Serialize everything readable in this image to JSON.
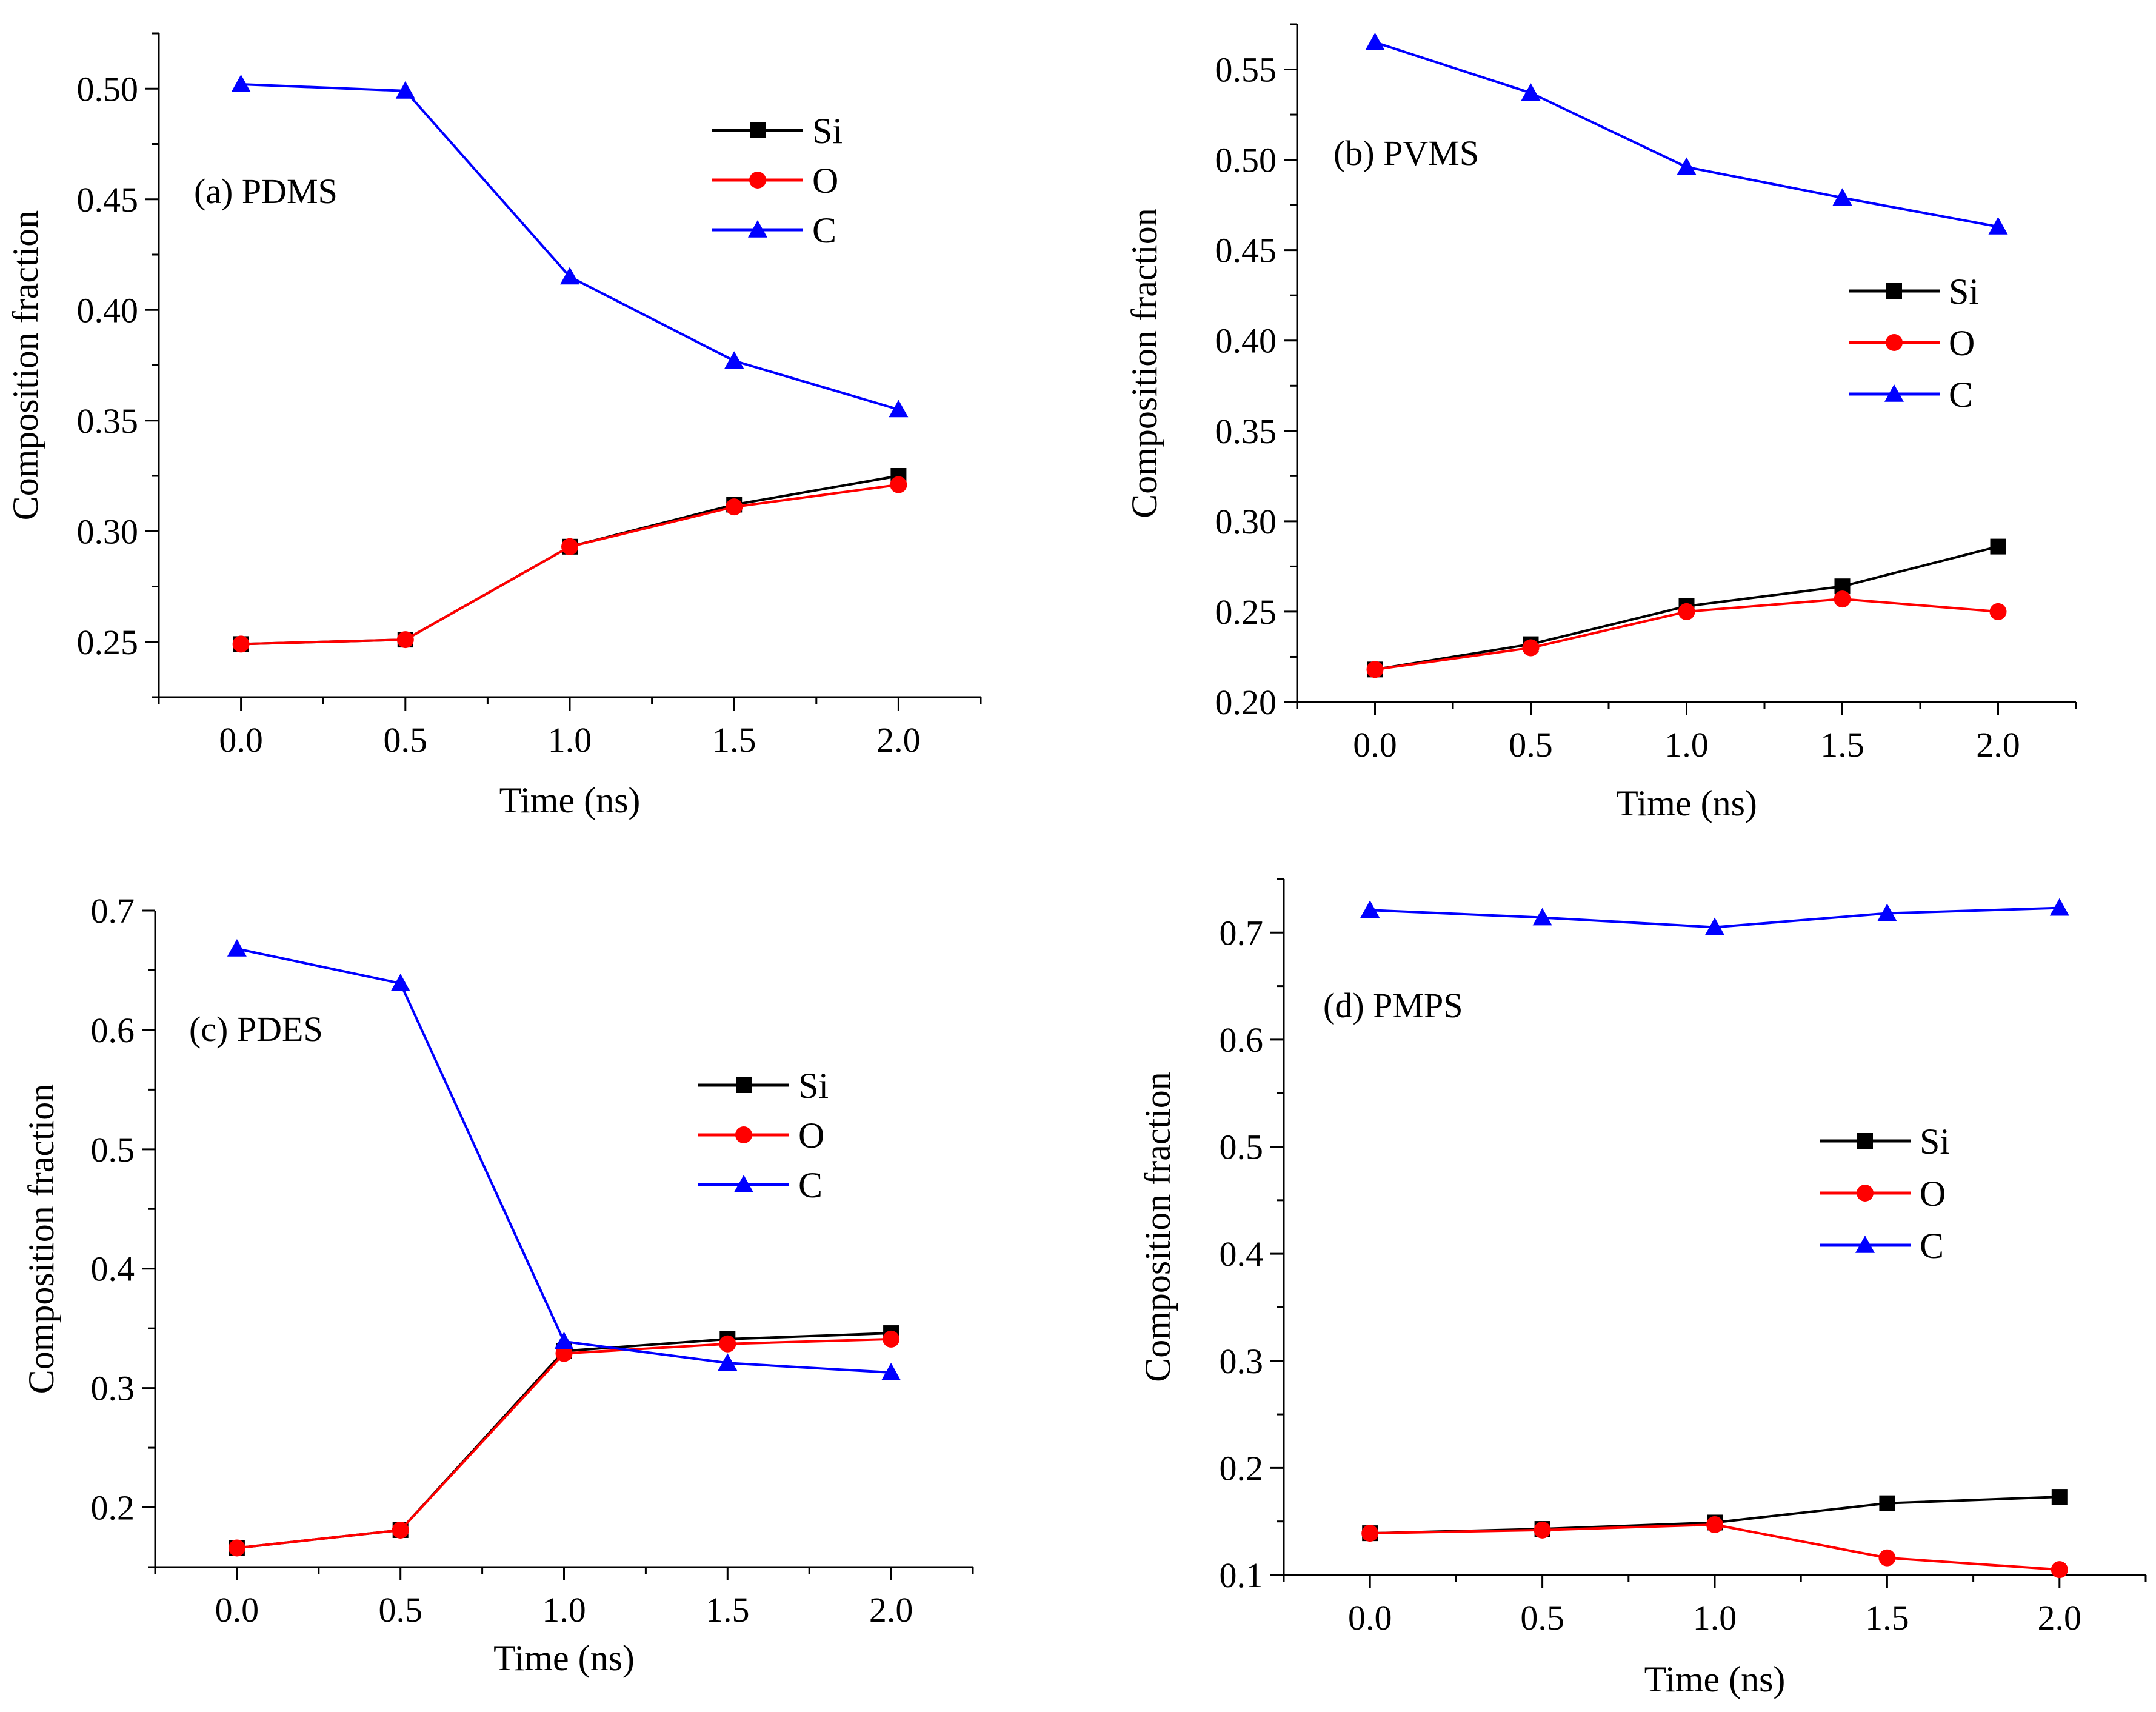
{
  "chart_data": [
    {
      "panel": "a",
      "type": "line",
      "title": "(a) PDMS",
      "xlabel": "Time (ns)",
      "ylabel": "Composition fraction",
      "xlim": [
        -0.25,
        2.25
      ],
      "ylim": [
        0.225,
        0.525
      ],
      "xticks": [
        0.0,
        0.5,
        1.0,
        1.5,
        2.0
      ],
      "xtick_labels": [
        "0.0",
        "0.5",
        "1.0",
        "1.5",
        "2.0"
      ],
      "yticks": [
        0.25,
        0.3,
        0.35,
        0.4,
        0.45,
        0.5
      ],
      "ytick_labels": [
        "0.25",
        "0.30",
        "0.35",
        "0.40",
        "0.45",
        "0.50"
      ],
      "legend_position": "top-right",
      "x": [
        0.0,
        0.5,
        1.0,
        1.5,
        2.0
      ],
      "series": [
        {
          "name": "Si",
          "color": "#000000",
          "marker": "square",
          "values": [
            0.249,
            0.251,
            0.293,
            0.312,
            0.325
          ]
        },
        {
          "name": "O",
          "color": "#ff0000",
          "marker": "circle",
          "values": [
            0.249,
            0.251,
            0.293,
            0.311,
            0.321
          ]
        },
        {
          "name": "C",
          "color": "#0000ff",
          "marker": "triangle",
          "values": [
            0.502,
            0.499,
            0.415,
            0.377,
            0.355
          ]
        }
      ]
    },
    {
      "panel": "b",
      "type": "line",
      "title": "(b) PVMS",
      "xlabel": "Time (ns)",
      "ylabel": "Composition fraction",
      "xlim": [
        -0.25,
        2.25
      ],
      "ylim": [
        0.2,
        0.575
      ],
      "xticks": [
        0.0,
        0.5,
        1.0,
        1.5,
        2.0
      ],
      "xtick_labels": [
        "0.0",
        "0.5",
        "1.0",
        "1.5",
        "2.0"
      ],
      "yticks": [
        0.2,
        0.25,
        0.3,
        0.35,
        0.4,
        0.45,
        0.5,
        0.55
      ],
      "ytick_labels": [
        "0.20",
        "0.25",
        "0.30",
        "0.35",
        "0.40",
        "0.45",
        "0.50",
        "0.55"
      ],
      "legend_position": "right",
      "x": [
        0.0,
        0.5,
        1.0,
        1.5,
        2.0
      ],
      "series": [
        {
          "name": "Si",
          "color": "#000000",
          "marker": "square",
          "values": [
            0.218,
            0.232,
            0.253,
            0.264,
            0.286
          ]
        },
        {
          "name": "O",
          "color": "#ff0000",
          "marker": "circle",
          "values": [
            0.218,
            0.23,
            0.25,
            0.257,
            0.25
          ]
        },
        {
          "name": "C",
          "color": "#0000ff",
          "marker": "triangle",
          "values": [
            0.565,
            0.537,
            0.496,
            0.479,
            0.463
          ]
        }
      ]
    },
    {
      "panel": "c",
      "type": "line",
      "title": "(c) PDES",
      "xlabel": "Time (ns)",
      "ylabel": "Composition fraction",
      "xlim": [
        -0.25,
        2.25
      ],
      "ylim": [
        0.15,
        0.7
      ],
      "xticks": [
        0.0,
        0.5,
        1.0,
        1.5,
        2.0
      ],
      "xtick_labels": [
        "0.0",
        "0.5",
        "1.0",
        "1.5",
        "2.0"
      ],
      "yticks": [
        0.2,
        0.3,
        0.4,
        0.5,
        0.6,
        0.7
      ],
      "ytick_labels": [
        "0.2",
        "0.3",
        "0.4",
        "0.5",
        "0.6",
        "0.7"
      ],
      "legend_position": "right",
      "x": [
        0.0,
        0.5,
        1.0,
        1.5,
        2.0
      ],
      "series": [
        {
          "name": "Si",
          "color": "#000000",
          "marker": "square",
          "values": [
            0.166,
            0.181,
            0.331,
            0.341,
            0.346
          ]
        },
        {
          "name": "O",
          "color": "#ff0000",
          "marker": "circle",
          "values": [
            0.166,
            0.181,
            0.329,
            0.337,
            0.341
          ]
        },
        {
          "name": "C",
          "color": "#0000ff",
          "marker": "triangle",
          "values": [
            0.668,
            0.639,
            0.339,
            0.321,
            0.313
          ]
        }
      ]
    },
    {
      "panel": "d",
      "type": "line",
      "title": "(d) PMPS",
      "xlabel": "Time (ns)",
      "ylabel": "Composition fraction",
      "xlim": [
        -0.25,
        2.25
      ],
      "ylim": [
        0.1,
        0.75
      ],
      "xticks": [
        0.0,
        0.5,
        1.0,
        1.5,
        2.0
      ],
      "xtick_labels": [
        "0.0",
        "0.5",
        "1.0",
        "1.5",
        "2.0"
      ],
      "yticks": [
        0.1,
        0.2,
        0.3,
        0.4,
        0.5,
        0.6,
        0.7
      ],
      "ytick_labels": [
        "0.1",
        "0.2",
        "0.3",
        "0.4",
        "0.5",
        "0.6",
        "0.7"
      ],
      "legend_position": "right",
      "x": [
        0.0,
        0.5,
        1.0,
        1.5,
        2.0
      ],
      "series": [
        {
          "name": "Si",
          "color": "#000000",
          "marker": "square",
          "values": [
            0.139,
            0.143,
            0.149,
            0.167,
            0.173
          ]
        },
        {
          "name": "O",
          "color": "#ff0000",
          "marker": "circle",
          "values": [
            0.139,
            0.142,
            0.147,
            0.116,
            0.105
          ]
        },
        {
          "name": "C",
          "color": "#0000ff",
          "marker": "triangle",
          "values": [
            0.721,
            0.714,
            0.705,
            0.718,
            0.723
          ]
        }
      ]
    }
  ]
}
